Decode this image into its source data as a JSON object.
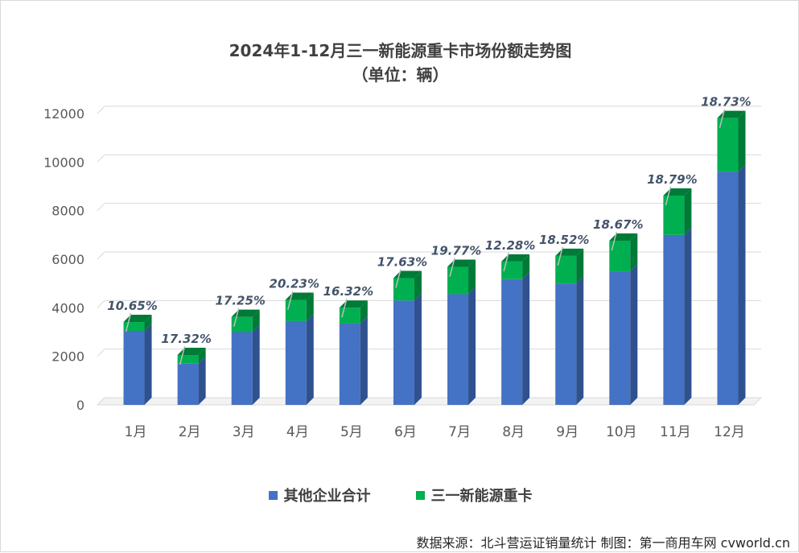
{
  "chart_data": {
    "type": "bar",
    "stacked": true,
    "title": "2024年1-12月三一新能源重卡市场份额走势图",
    "subtitle": "（单位：辆）",
    "categories": [
      "1月",
      "2月",
      "3月",
      "4月",
      "5月",
      "6月",
      "7月",
      "8月",
      "9月",
      "10月",
      "11月",
      "12月"
    ],
    "series": [
      {
        "name": "其他企业合计",
        "color": "#4472c4",
        "side_color": "#2f528f",
        "values": [
          3050,
          1700,
          3000,
          3450,
          3350,
          4300,
          4560,
          5180,
          5000,
          5500,
          7000,
          9600
        ]
      },
      {
        "name": "三一新能源重卡",
        "color": "#00b050",
        "side_color": "#007a37",
        "values": [
          363,
          356,
          625,
          875,
          654,
          920,
          1124,
          725,
          1136,
          1262,
          1620,
          2212
        ]
      }
    ],
    "share_labels": [
      "10.65%",
      "17.32%",
      "17.25%",
      "20.23%",
      "16.32%",
      "17.63%",
      "19.77%",
      "12.28%",
      "18.52%",
      "18.67%",
      "18.79%",
      "18.73%"
    ],
    "y_ticks": [
      0,
      2000,
      4000,
      6000,
      8000,
      10000,
      12000
    ],
    "ylim": [
      0,
      12000
    ],
    "grid": true,
    "legend_position": "bottom"
  },
  "footer": {
    "source": "数据来源：北斗营运证销量统计  制图：第一商用车网 cvworld.cn"
  }
}
